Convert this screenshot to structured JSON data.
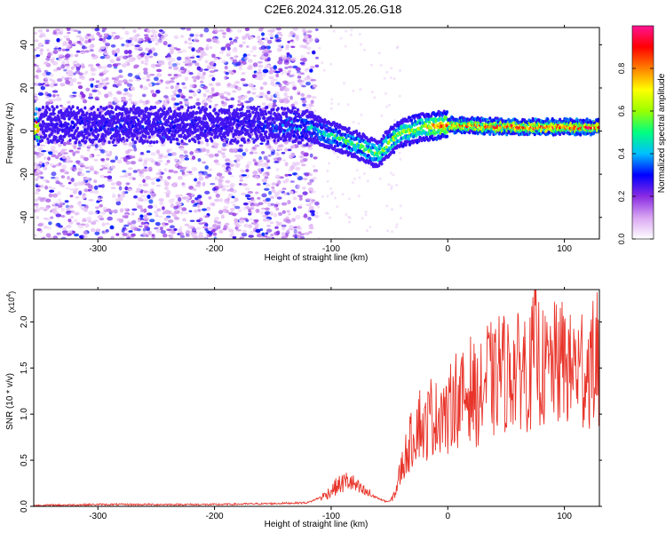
{
  "title": "C2E6.2024.312.05.26.G18",
  "chart_data": [
    {
      "type": "heatmap",
      "xlabel": "Height of straight line (km)",
      "ylabel": "Frequency (Hz)",
      "xlim": [
        -355,
        130
      ],
      "ylim": [
        -50,
        48
      ],
      "xticks": [
        -300,
        -200,
        -100,
        0,
        100
      ],
      "yticks": [
        -40,
        -20,
        0,
        20,
        40
      ],
      "colorbar": {
        "label": "Normalized spectral amplitude",
        "range": [
          0.0,
          1.0
        ],
        "ticks": [
          "0.0",
          "0.2",
          "0.4",
          "0.6",
          "0.8"
        ],
        "tick_values": [
          0.0,
          0.2,
          0.4,
          0.6,
          0.8
        ],
        "colors": [
          "#ffffff",
          "#d9a6f2",
          "#8a2be2",
          "#0000ff",
          "#00bfff",
          "#00ff80",
          "#9aff00",
          "#ffff00",
          "#ff8000",
          "#ff0000",
          "#ff1493"
        ]
      },
      "signal_track": [
        {
          "x": -350,
          "freq": 3,
          "amp": 0.25
        },
        {
          "x": -300,
          "freq": 3,
          "amp": 0.3
        },
        {
          "x": -250,
          "freq": 3,
          "amp": 0.3
        },
        {
          "x": -200,
          "freq": 3,
          "amp": 0.28
        },
        {
          "x": -150,
          "freq": 3,
          "amp": 0.32
        },
        {
          "x": -120,
          "freq": 2,
          "amp": 0.45
        },
        {
          "x": -100,
          "freq": -2,
          "amp": 0.5
        },
        {
          "x": -80,
          "freq": -6,
          "amp": 0.55
        },
        {
          "x": -60,
          "freq": -11,
          "amp": 0.6
        },
        {
          "x": -50,
          "freq": -5,
          "amp": 0.62
        },
        {
          "x": -40,
          "freq": -1,
          "amp": 0.65
        },
        {
          "x": -20,
          "freq": 2,
          "amp": 0.7
        },
        {
          "x": 0,
          "freq": 3,
          "amp": 0.85
        },
        {
          "x": 50,
          "freq": 2,
          "amp": 0.9
        },
        {
          "x": 130,
          "freq": 2,
          "amp": 0.9
        }
      ],
      "noise_region_x": [
        -355,
        -120
      ]
    },
    {
      "type": "line",
      "xlabel": "Height of straight line (km)",
      "ylabel": "SNR (10 * v/v)",
      "yscale_label": "(x10",
      "yscale_exp": "4",
      "xlim": [
        -355,
        130
      ],
      "ylim": [
        0,
        2.35
      ],
      "xticks": [
        -300,
        -200,
        -100,
        0,
        100
      ],
      "yticks": [
        "0.0",
        "0.5",
        "1.0",
        "1.5",
        "2.0"
      ],
      "ytick_values": [
        0,
        0.5,
        1.0,
        1.5,
        2.0
      ],
      "color": "#e8342a",
      "series": [
        {
          "x": [
            -355,
            -300,
            -250,
            -200,
            -150,
            -120,
            -105,
            -95,
            -85,
            -75,
            -65,
            -55,
            -50,
            -45,
            -40,
            -35,
            -30,
            -25,
            -20,
            -15,
            -10,
            -5,
            0,
            5,
            10,
            15,
            20,
            25,
            30,
            35,
            40,
            45,
            50,
            55,
            60,
            65,
            70,
            75,
            80,
            85,
            90,
            95,
            100,
            105,
            110,
            115,
            120,
            125,
            130
          ],
          "values": [
            0.01,
            0.02,
            0.02,
            0.02,
            0.03,
            0.04,
            0.12,
            0.22,
            0.28,
            0.18,
            0.12,
            0.06,
            0.05,
            0.15,
            0.4,
            0.6,
            0.75,
            0.95,
            0.8,
            1.0,
            0.95,
            1.1,
            0.9,
            1.25,
            1.1,
            1.2,
            1.3,
            1.15,
            1.25,
            1.45,
            1.3,
            1.55,
            1.4,
            1.5,
            1.45,
            1.55,
            1.4,
            1.75,
            1.5,
            1.45,
            1.55,
            1.5,
            1.6,
            1.45,
            1.55,
            1.4,
            1.5,
            1.55,
            1.45
          ],
          "peaks": [
            {
              "x": 12,
              "y": 1.62
            },
            {
              "x": 35,
              "y": 1.83
            },
            {
              "x": 75,
              "y": 2.18
            },
            {
              "x": 95,
              "y": 2.0
            },
            {
              "x": 115,
              "y": 2.08
            },
            {
              "x": 128,
              "y": 2.32
            }
          ]
        }
      ]
    }
  ]
}
